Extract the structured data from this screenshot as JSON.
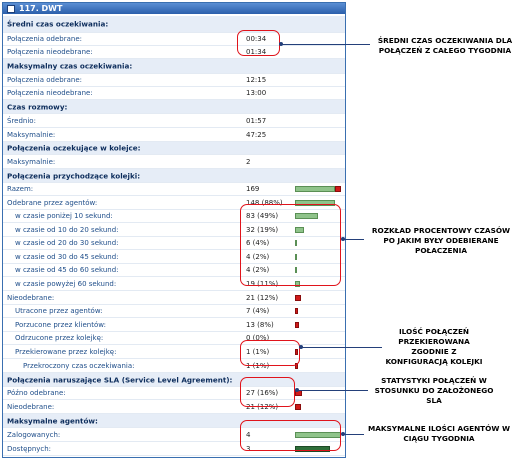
{
  "header": {
    "title": "117. DWT"
  },
  "rows": [
    {
      "label": "Średni czas oczekiwania:",
      "section": true
    },
    {
      "label": "Połączenia odebrane:",
      "value": "00:34"
    },
    {
      "label": "Połączenia nieodebrane:",
      "value": "01:34"
    },
    {
      "label": "Maksymalny czas oczekiwania:",
      "section": true
    },
    {
      "label": "Połączenia odebrane:",
      "value": "12:15"
    },
    {
      "label": "Połączenia nieodebrane:",
      "value": "13:00"
    },
    {
      "label": "Czas rozmowy:",
      "section": true
    },
    {
      "label": "Średnio:",
      "value": "01:57"
    },
    {
      "label": "Maksymalnie:",
      "value": "47:25"
    },
    {
      "label": "Połączenia oczekujące w kolejce:",
      "section": true
    },
    {
      "label": "Maksymalnie:",
      "value": "2"
    },
    {
      "label": "Połączenia przychodzące kolejki:",
      "section": true
    },
    {
      "label": "Razem:",
      "value": "169",
      "bar": {
        "fill": 0.88,
        "rest": 0.12
      }
    },
    {
      "label": "Odebrane przez agentów:",
      "value": "148 (88%)",
      "bar": {
        "fill": 0.88,
        "rest": 0
      }
    },
    {
      "label": "w czasie poniżej 10 sekund:",
      "value": "83 (49%)",
      "indent": 1,
      "bar": {
        "fill": 0.49,
        "rest": 0
      }
    },
    {
      "label": "w czasie od 10 do 20 sekund:",
      "value": "32 (19%)",
      "indent": 1,
      "bar": {
        "fill": 0.19,
        "rest": 0
      }
    },
    {
      "label": "w czasie od 20 do 30 sekund:",
      "value": "6 (4%)",
      "indent": 1,
      "bar": {
        "fill": 0.04,
        "rest": 0
      }
    },
    {
      "label": "w czasie od 30 do 45 sekund:",
      "value": "4 (2%)",
      "indent": 1,
      "bar": {
        "fill": 0.02,
        "rest": 0
      }
    },
    {
      "label": "w czasie od 45 do 60 sekund:",
      "value": "4 (2%)",
      "indent": 1,
      "bar": {
        "fill": 0.02,
        "rest": 0
      }
    },
    {
      "label": "w czasie powyżej 60 sekund:",
      "value": "19 (11%)",
      "indent": 1,
      "bar": {
        "fill": 0.11,
        "rest": 0
      }
    },
    {
      "label": "Nieodebrane:",
      "value": "21 (12%)",
      "bar": {
        "fill": 0,
        "rest": 0.12
      }
    },
    {
      "label": "Utracone przez agentów:",
      "value": "7 (4%)",
      "indent": 1,
      "bar": {
        "fill": 0,
        "rest": 0.04
      }
    },
    {
      "label": "Porzucone przez klientów:",
      "value": "13 (8%)",
      "indent": 1,
      "bar": {
        "fill": 0,
        "rest": 0.08
      }
    },
    {
      "label": "Odrzucone przez kolejkę:",
      "value": "0 (0%)",
      "indent": 1
    },
    {
      "label": "Przekierowane przez kolejkę:",
      "value": "1 (1%)",
      "indent": 1,
      "bar": {
        "fill": 0,
        "rest": 0.01
      }
    },
    {
      "label": "Przekroczony czas oczekiwania:",
      "value": "1 (1%)",
      "indent": 2,
      "bar": {
        "fill": 0,
        "rest": 0.01
      }
    },
    {
      "label": "Połączenia naruszające SLA (Service Level Agreement):",
      "section": true
    },
    {
      "label": "Późno odebrane:",
      "value": "27 (16%)",
      "bar": {
        "fill": 0,
        "rest": 0.16
      }
    },
    {
      "label": "Nieodebrane:",
      "value": "21 (12%)",
      "bar": {
        "fill": 0,
        "rest": 0.12
      }
    },
    {
      "label": "Maksymalne agentów:",
      "section": true
    },
    {
      "label": "Zalogowanych:",
      "value": "4",
      "bar": {
        "fill": 1.0,
        "rest": 0,
        "style": "light"
      }
    },
    {
      "label": "Dostępnych:",
      "value": "3",
      "bar": {
        "fill": 0.75,
        "rest": 0,
        "style": "dark"
      }
    }
  ],
  "annotations": {
    "avg_wait": "ŚREDNI CZAS OCZEKIWANIA DLA POŁĄCZEŃ Z CAŁEGO TYGODNIA",
    "distribution": "ROZKŁAD PROCENTOWY CZASÓW PO JAKIM BYŁY ODEBIERANE POŁACZENIA",
    "redirected": "ILOŚĆ POŁĄCZEŃ PRZEKIEROWANA ZGODNIE Z KONFIGURACJĄ KOLEJKI",
    "sla": "STATYSTYKI POŁĄCZEŃ W STOSUNKU DO ZAŁOŻONEGO SLA",
    "agents": "MAKSYMALNE ILOŚCI AGENTÓW W CIĄGU TYGODNIA"
  },
  "colors": {
    "accent": "#2b5fab",
    "highlight": "#e0141c",
    "bar_green": "#8fc38a",
    "bar_dark": "#2e6e3a",
    "bar_red": "#d01a1a"
  }
}
